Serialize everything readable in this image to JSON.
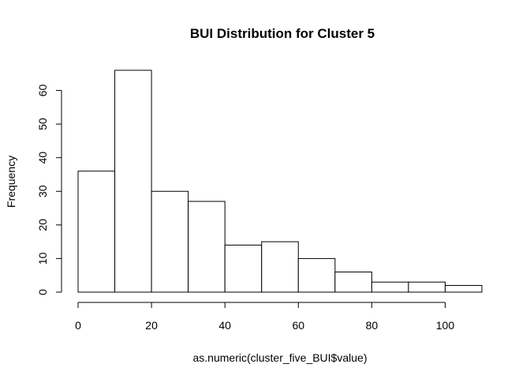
{
  "chart_data": {
    "type": "bar",
    "title": "BUI Distribution for Cluster 5",
    "xlabel": "as.numeric(cluster_five_BUI$value)",
    "ylabel": "Frequency",
    "bin_edges": [
      0,
      10,
      20,
      30,
      40,
      50,
      60,
      70,
      80,
      90,
      100,
      110
    ],
    "values": [
      36,
      66,
      30,
      27,
      14,
      15,
      10,
      6,
      3,
      3,
      2
    ],
    "xlim": [
      0,
      110
    ],
    "ylim": [
      0,
      66
    ],
    "x_ticks": [
      0,
      20,
      40,
      60,
      80,
      100
    ],
    "y_ticks": [
      0,
      10,
      20,
      30,
      40,
      50,
      60
    ],
    "x_tick_labels": [
      "0",
      "20",
      "40",
      "60",
      "80",
      "100"
    ],
    "y_tick_labels": [
      "0",
      "10",
      "20",
      "30",
      "40",
      "50",
      "60"
    ],
    "grid": false,
    "legend": "none",
    "colors": {
      "bar_fill": "#ffffff",
      "bar_stroke": "#000000",
      "axis": "#000000",
      "background": "#ffffff"
    }
  }
}
